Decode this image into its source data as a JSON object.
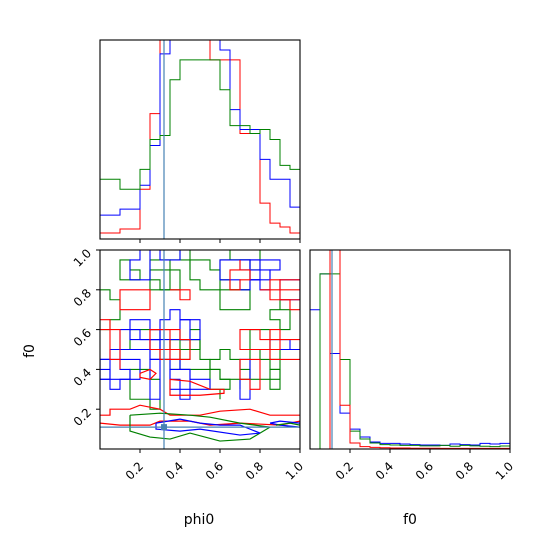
{
  "colors": {
    "red": "#ff0000",
    "blue": "#0000ff",
    "green": "#008000",
    "truth": "#4682b4"
  },
  "chart_data": [
    {
      "type": "histogram",
      "panel": "phi0 marginal",
      "bin_edges": [
        0.0,
        0.1,
        0.2,
        0.25,
        0.3,
        0.35,
        0.4,
        0.45,
        0.5,
        0.55,
        0.6,
        0.65,
        0.7,
        0.75,
        0.8,
        0.85,
        0.9,
        0.95,
        1.0
      ],
      "series": [
        {
          "color": "red",
          "values": [
            0.03,
            0.05,
            0.25,
            0.63,
            1.1,
            1.3,
            1.3,
            1.2,
            1.15,
            0.9,
            0.9,
            0.9,
            0.53,
            0.53,
            0.18,
            0.08,
            0.06,
            0.03
          ]
        },
        {
          "color": "blue",
          "values": [
            0.12,
            0.15,
            0.27,
            0.47,
            0.93,
            1.2,
            1.3,
            1.3,
            1.4,
            1.15,
            0.95,
            0.65,
            0.55,
            0.55,
            0.4,
            0.3,
            0.3,
            0.16
          ]
        },
        {
          "color": "green",
          "values": [
            0.3,
            0.25,
            0.35,
            0.5,
            0.52,
            0.8,
            0.9,
            0.9,
            0.9,
            0.9,
            0.75,
            0.57,
            0.57,
            0.53,
            0.55,
            0.5,
            0.37,
            0.35
          ]
        }
      ],
      "truth_x": 0.32
    },
    {
      "type": "contour",
      "panel": "phi0 vs f0",
      "xlabel": "phi0",
      "ylabel": "f0",
      "xlim": [
        0.0,
        1.0
      ],
      "ylim": [
        0.0,
        1.0
      ],
      "xticks": [
        "0.2",
        "0.4",
        "0.6",
        "0.8",
        "1.0"
      ],
      "yticks": [
        "0.2",
        "0.4",
        "0.6",
        "0.8",
        "1.0"
      ],
      "series": [
        {
          "color": "red"
        },
        {
          "color": "blue"
        },
        {
          "color": "green"
        }
      ],
      "truth_x": 0.32,
      "truth_y": 0.11
    },
    {
      "type": "histogram",
      "panel": "f0 marginal",
      "xlabel": "f0",
      "xlim": [
        0.0,
        1.0
      ],
      "xticks": [
        "0.2",
        "0.4",
        "0.6",
        "0.8",
        "1.0"
      ],
      "bin_edges": [
        0.0,
        0.05,
        0.1,
        0.15,
        0.2,
        0.25,
        0.3,
        0.35,
        0.4,
        0.45,
        0.5,
        0.55,
        0.6,
        0.65,
        0.7,
        0.75,
        0.8,
        0.85,
        0.9,
        0.95,
        1.0
      ],
      "series": [
        {
          "color": "blue",
          "values": [
            0.7,
            0.88,
            0.48,
            0.18,
            0.1,
            0.06,
            0.035,
            0.028,
            0.028,
            0.025,
            0.022,
            0.02,
            0.02,
            0.018,
            0.025,
            0.022,
            0.02,
            0.028,
            0.025,
            0.028
          ]
        },
        {
          "color": "green",
          "values": [
            0.0,
            0.88,
            0.88,
            0.45,
            0.09,
            0.05,
            0.03,
            0.022,
            0.02,
            0.018,
            0.018,
            0.016,
            0.016,
            0.018,
            0.014,
            0.018,
            0.016,
            0.014,
            0.012,
            0.015
          ]
        },
        {
          "color": "red",
          "values": [
            0.0,
            0.0,
            1.0,
            0.22,
            0.03,
            0.012,
            0.008,
            0.006,
            0.005,
            0.005,
            0.004,
            0.004,
            0.004,
            0.003,
            0.003,
            0.003,
            0.003,
            0.003,
            0.003,
            0.003
          ]
        }
      ],
      "truth_x": 0.11
    }
  ]
}
